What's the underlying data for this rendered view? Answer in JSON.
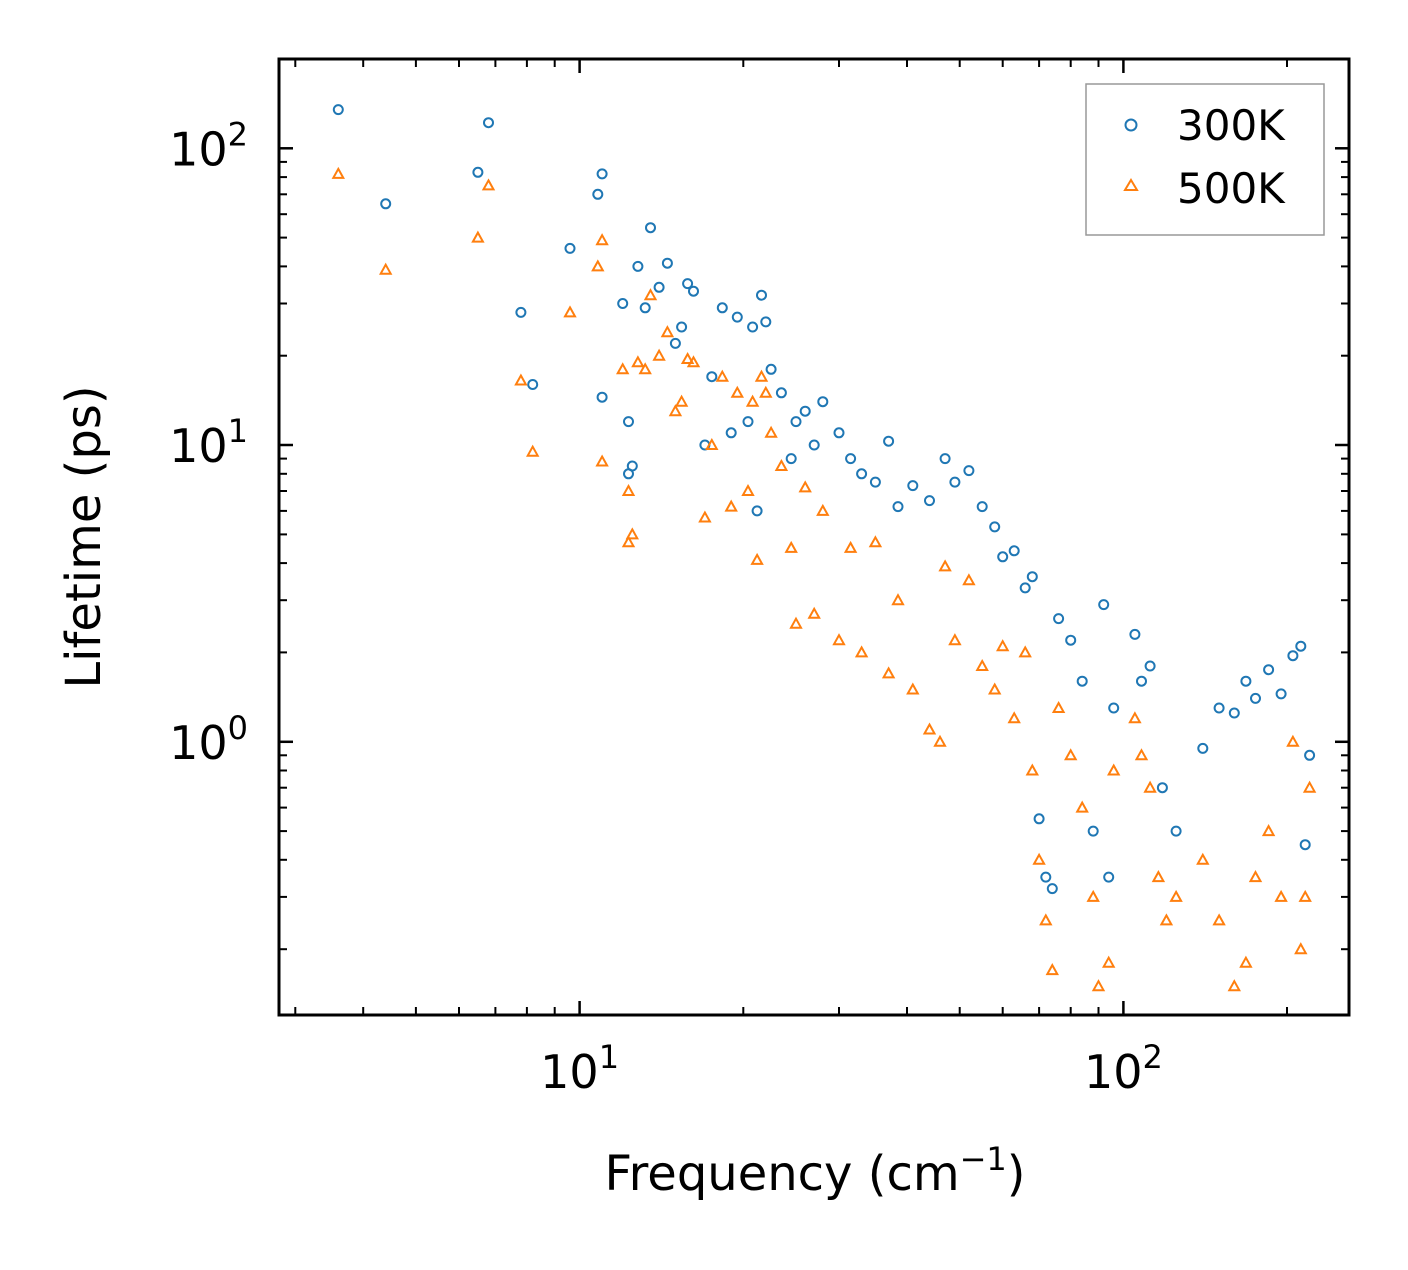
{
  "chart_data": {
    "type": "scatter",
    "title": "",
    "xlabel": "Frequency (cm",
    "xlabel_sup": "−1",
    "xlabel_close": ")",
    "ylabel": "Lifetime (ps)",
    "xscale": "log",
    "yscale": "log",
    "xlim": [
      2.8,
      260
    ],
    "ylim": [
      0.12,
      200
    ],
    "legend_position": "top-right",
    "x_ticks": [
      {
        "value": 10,
        "base": "10",
        "exp": "1"
      },
      {
        "value": 100,
        "base": "10",
        "exp": "2"
      }
    ],
    "y_ticks": [
      {
        "value": 1,
        "base": "10",
        "exp": "0"
      },
      {
        "value": 10,
        "base": "10",
        "exp": "1"
      },
      {
        "value": 100,
        "base": "10",
        "exp": "2"
      }
    ],
    "series": [
      {
        "name": "300K",
        "marker": "circle",
        "color": "#1f77b4",
        "points": [
          [
            3.6,
            135
          ],
          [
            4.4,
            65
          ],
          [
            6.5,
            83
          ],
          [
            6.8,
            122
          ],
          [
            7.8,
            28
          ],
          [
            8.2,
            16
          ],
          [
            9.6,
            46
          ],
          [
            10.8,
            70
          ],
          [
            11.0,
            82
          ],
          [
            11.0,
            14.5
          ],
          [
            12.0,
            30
          ],
          [
            12.3,
            8
          ],
          [
            12.3,
            12
          ],
          [
            12.5,
            8.5
          ],
          [
            12.8,
            40
          ],
          [
            13.2,
            29
          ],
          [
            13.5,
            54
          ],
          [
            14.0,
            34
          ],
          [
            14.5,
            41
          ],
          [
            15.0,
            22
          ],
          [
            15.4,
            25
          ],
          [
            15.8,
            35
          ],
          [
            16.2,
            33
          ],
          [
            17.0,
            10
          ],
          [
            17.5,
            17
          ],
          [
            18.3,
            29
          ],
          [
            19.0,
            11
          ],
          [
            19.5,
            27
          ],
          [
            20.4,
            12
          ],
          [
            20.8,
            25
          ],
          [
            21.2,
            6
          ],
          [
            21.6,
            32
          ],
          [
            22.0,
            26
          ],
          [
            22.5,
            18
          ],
          [
            23.5,
            15
          ],
          [
            24.5,
            9
          ],
          [
            25.0,
            12
          ],
          [
            26.0,
            13
          ],
          [
            27.0,
            10
          ],
          [
            28.0,
            14
          ],
          [
            30.0,
            11
          ],
          [
            31.5,
            9
          ],
          [
            33.0,
            8
          ],
          [
            35.0,
            7.5
          ],
          [
            37.0,
            10.3
          ],
          [
            38.5,
            6.2
          ],
          [
            41.0,
            7.3
          ],
          [
            44.0,
            6.5
          ],
          [
            47.0,
            9
          ],
          [
            49.0,
            7.5
          ],
          [
            52.0,
            8.2
          ],
          [
            55.0,
            6.2
          ],
          [
            58.0,
            5.3
          ],
          [
            60.0,
            4.2
          ],
          [
            63.0,
            4.4
          ],
          [
            66.0,
            3.3
          ],
          [
            68.0,
            3.6
          ],
          [
            70.0,
            0.55
          ],
          [
            72.0,
            0.35
          ],
          [
            74.0,
            0.32
          ],
          [
            76.0,
            2.6
          ],
          [
            80.0,
            2.2
          ],
          [
            84.0,
            1.6
          ],
          [
            88.0,
            0.5
          ],
          [
            92.0,
            2.9
          ],
          [
            94.0,
            0.35
          ],
          [
            96.0,
            1.3
          ],
          [
            105.0,
            2.3
          ],
          [
            108.0,
            1.6
          ],
          [
            112.0,
            1.8
          ],
          [
            118.0,
            0.7
          ],
          [
            125.0,
            0.5
          ],
          [
            140.0,
            0.95
          ],
          [
            150.0,
            1.3
          ],
          [
            160.0,
            1.25
          ],
          [
            168.0,
            1.6
          ],
          [
            175.0,
            1.4
          ],
          [
            185.0,
            1.75
          ],
          [
            195.0,
            1.45
          ],
          [
            205.0,
            1.95
          ],
          [
            212.0,
            2.1
          ],
          [
            216.0,
            0.45
          ],
          [
            220.0,
            0.9
          ]
        ]
      },
      {
        "name": "500K",
        "marker": "triangle",
        "color": "#ff7f0e",
        "points": [
          [
            3.6,
            82
          ],
          [
            4.4,
            39
          ],
          [
            6.5,
            50
          ],
          [
            6.8,
            75
          ],
          [
            7.8,
            16.5
          ],
          [
            8.2,
            9.5
          ],
          [
            9.6,
            28
          ],
          [
            10.8,
            40
          ],
          [
            11.0,
            49
          ],
          [
            11.0,
            8.8
          ],
          [
            12.0,
            18
          ],
          [
            12.3,
            4.7
          ],
          [
            12.3,
            7
          ],
          [
            12.5,
            5
          ],
          [
            12.8,
            19
          ],
          [
            13.2,
            18
          ],
          [
            13.5,
            32
          ],
          [
            14.0,
            20
          ],
          [
            14.5,
            24
          ],
          [
            15.0,
            13
          ],
          [
            15.4,
            14
          ],
          [
            15.8,
            19.5
          ],
          [
            16.2,
            19
          ],
          [
            17.0,
            5.7
          ],
          [
            17.5,
            10
          ],
          [
            18.3,
            17
          ],
          [
            19.0,
            6.2
          ],
          [
            19.5,
            15
          ],
          [
            20.4,
            7
          ],
          [
            20.8,
            14
          ],
          [
            21.2,
            4.1
          ],
          [
            21.6,
            17
          ],
          [
            22.0,
            15
          ],
          [
            22.5,
            11
          ],
          [
            23.5,
            8.5
          ],
          [
            24.5,
            4.5
          ],
          [
            25.0,
            2.5
          ],
          [
            26.0,
            7.2
          ],
          [
            27.0,
            2.7
          ],
          [
            28.0,
            6
          ],
          [
            30.0,
            2.2
          ],
          [
            31.5,
            4.5
          ],
          [
            33.0,
            2.0
          ],
          [
            35.0,
            4.7
          ],
          [
            37.0,
            1.7
          ],
          [
            38.5,
            3.0
          ],
          [
            41.0,
            1.5
          ],
          [
            44.0,
            1.1
          ],
          [
            46.0,
            1.0
          ],
          [
            47.0,
            3.9
          ],
          [
            49.0,
            2.2
          ],
          [
            52.0,
            3.5
          ],
          [
            55.0,
            1.8
          ],
          [
            58.0,
            1.5
          ],
          [
            60.0,
            2.1
          ],
          [
            63.0,
            1.2
          ],
          [
            66.0,
            2.0
          ],
          [
            68.0,
            0.8
          ],
          [
            70.0,
            0.4
          ],
          [
            72.0,
            0.25
          ],
          [
            74.0,
            0.17
          ],
          [
            76.0,
            1.3
          ],
          [
            80.0,
            0.9
          ],
          [
            84.0,
            0.6
          ],
          [
            88.0,
            0.3
          ],
          [
            90.0,
            0.15
          ],
          [
            94.0,
            0.18
          ],
          [
            96.0,
            0.8
          ],
          [
            105.0,
            1.2
          ],
          [
            108.0,
            0.9
          ],
          [
            112.0,
            0.7
          ],
          [
            116.0,
            0.35
          ],
          [
            120.0,
            0.25
          ],
          [
            125.0,
            0.3
          ],
          [
            140.0,
            0.4
          ],
          [
            150.0,
            0.25
          ],
          [
            160.0,
            0.15
          ],
          [
            168.0,
            0.18
          ],
          [
            175.0,
            0.35
          ],
          [
            185.0,
            0.5
          ],
          [
            195.0,
            0.3
          ],
          [
            205.0,
            1.0
          ],
          [
            212.0,
            0.2
          ],
          [
            216.0,
            0.3
          ],
          [
            220.0,
            0.7
          ]
        ]
      }
    ]
  }
}
